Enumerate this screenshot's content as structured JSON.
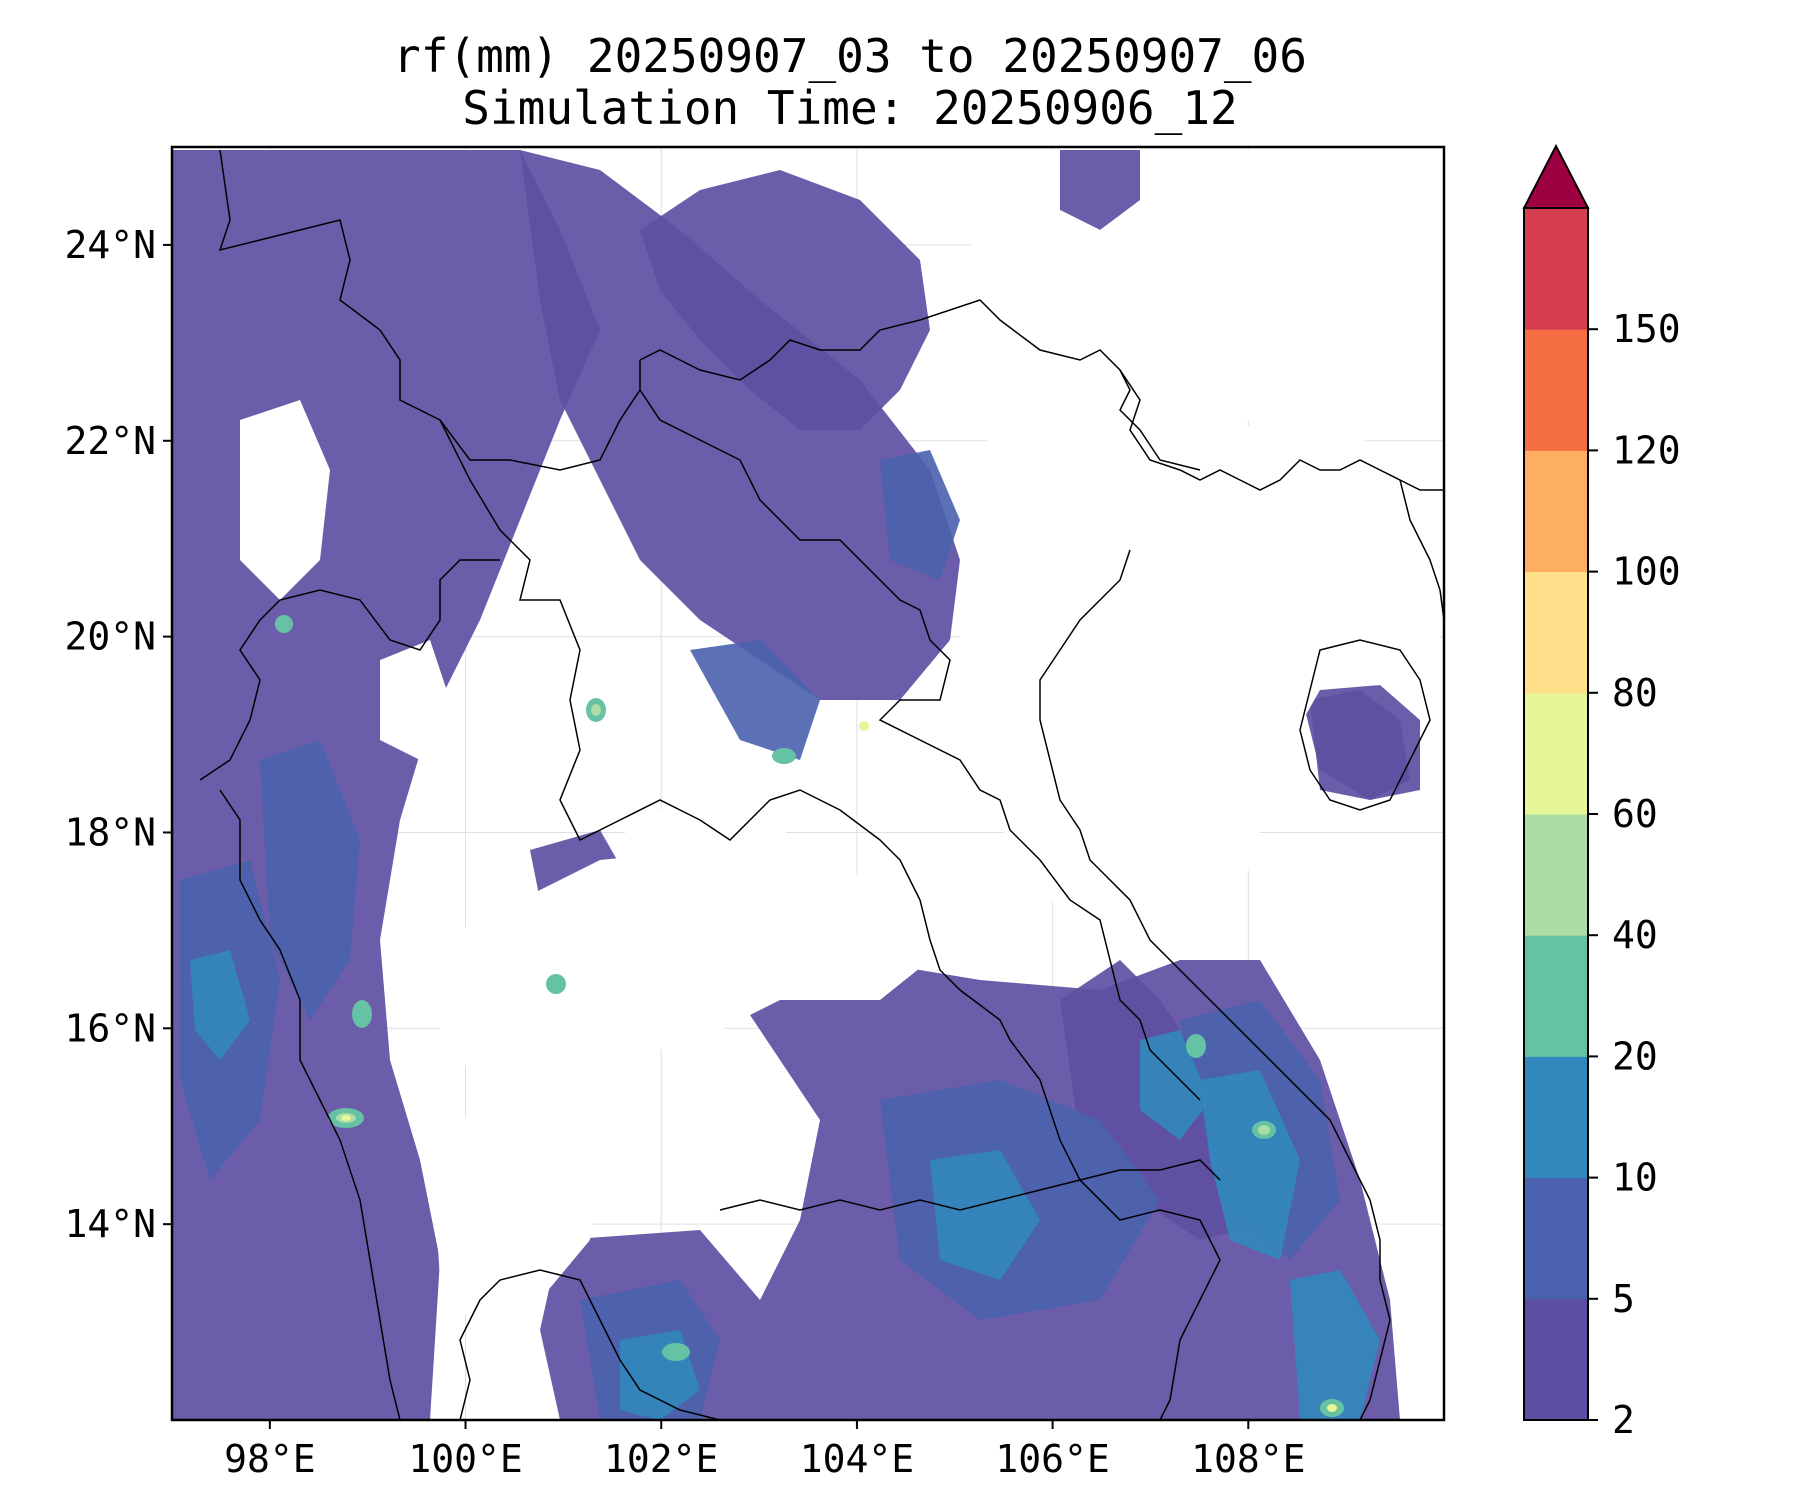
{
  "title": {
    "line1": "rf(mm) 20250907_03 to 20250907_06",
    "line2": "Simulation Time: 20250906_12"
  },
  "map": {
    "x_ticks": [
      "98°E",
      "100°E",
      "102°E",
      "104°E",
      "106°E",
      "108°E"
    ],
    "y_ticks": [
      "24°N",
      "22°N",
      "20°N",
      "18°N",
      "16°N",
      "14°N"
    ],
    "lon_range": [
      97,
      110
    ],
    "lat_range": [
      12,
      25
    ]
  },
  "colorbar": {
    "levels": [
      "2",
      "5",
      "10",
      "20",
      "40",
      "60",
      "80",
      "100",
      "120",
      "150"
    ],
    "colors": [
      "#5e4fa2",
      "#4a62ad",
      "#3288bd",
      "#66c2a5",
      "#abdda4",
      "#e6f598",
      "#fee08b",
      "#fdae61",
      "#f46d43",
      "#d53e4f"
    ],
    "extend_color": "#9e0142",
    "extend": "max"
  }
}
